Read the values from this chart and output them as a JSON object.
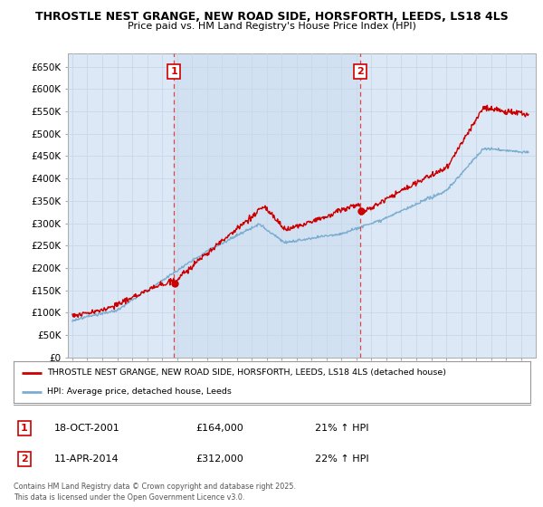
{
  "title_line1": "THROSTLE NEST GRANGE, NEW ROAD SIDE, HORSFORTH, LEEDS, LS18 4LS",
  "title_line2": "Price paid vs. HM Land Registry's House Price Index (HPI)",
  "ylim": [
    0,
    680000
  ],
  "yticks": [
    0,
    50000,
    100000,
    150000,
    200000,
    250000,
    300000,
    350000,
    400000,
    450000,
    500000,
    550000,
    600000,
    650000
  ],
  "ytick_labels": [
    "£0",
    "£50K",
    "£100K",
    "£150K",
    "£200K",
    "£250K",
    "£300K",
    "£350K",
    "£400K",
    "£450K",
    "£500K",
    "£550K",
    "£600K",
    "£650K"
  ],
  "sale1_date": 2001.8,
  "sale1_price": 164000,
  "sale1_label": "1",
  "sale1_text": "18-OCT-2001",
  "sale1_amount": "£164,000",
  "sale1_hpi": "21% ↑ HPI",
  "sale2_date": 2014.27,
  "sale2_price": 312000,
  "sale2_label": "2",
  "sale2_text": "11-APR-2014",
  "sale2_amount": "£312,000",
  "sale2_hpi": "22% ↑ HPI",
  "legend_line1": "THROSTLE NEST GRANGE, NEW ROAD SIDE, HORSFORTH, LEEDS, LS18 4LS (detached house)",
  "legend_line2": "HPI: Average price, detached house, Leeds",
  "footer": "Contains HM Land Registry data © Crown copyright and database right 2025.\nThis data is licensed under the Open Government Licence v3.0.",
  "price_color": "#cc0000",
  "hpi_color": "#7aadcf",
  "vline_color": "#dd4444",
  "grid_color": "#c8d8e8",
  "bg_color": "#dce8f5",
  "bg_shade_color": "#ccddf0"
}
